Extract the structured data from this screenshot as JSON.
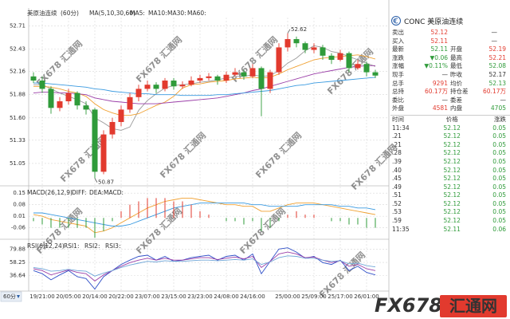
{
  "header": {
    "symbol": "美原油连续",
    "period": "(60分)",
    "period_tab": "60分"
  },
  "watermark": "FX678 汇通网",
  "logo": {
    "brand": "FX678",
    "name": "汇通网"
  },
  "chart_data": [
    {
      "type": "candlestick",
      "indicator": "MA(5,10,30,60)",
      "categories": [
        null,
        "19/21:00",
        null,
        null,
        "20/05:00",
        null,
        null,
        "20/14:00",
        null,
        null,
        "20/22:00",
        null,
        null,
        "23/07:00",
        null,
        null,
        "23/15:00",
        null,
        null,
        "23/23:00",
        null,
        null,
        "24/08:00",
        null,
        null,
        "24/16:00",
        null,
        null,
        null,
        "25/00:00",
        null,
        null,
        "25/09:00",
        null,
        null,
        "25/17:00",
        null,
        null,
        "26/01:00",
        null
      ],
      "open": [
        52.1,
        52.05,
        51.95,
        51.72,
        51.8,
        51.9,
        51.75,
        51.7,
        50.95,
        51.4,
        51.55,
        51.7,
        51.85,
        51.95,
        52.0,
        51.95,
        52.05,
        51.98,
        52.0,
        52.05,
        52.08,
        52.1,
        52.05,
        52.12,
        52.15,
        52.1,
        52.2,
        51.95,
        52.15,
        52.45,
        52.55,
        52.5,
        52.42,
        52.45,
        52.35,
        52.3,
        52.38,
        52.2,
        52.25,
        52.15
      ],
      "high": [
        52.15,
        52.1,
        51.98,
        51.85,
        51.95,
        51.92,
        51.8,
        51.72,
        51.45,
        51.6,
        51.75,
        51.9,
        52.0,
        52.05,
        52.03,
        52.08,
        52.08,
        52.04,
        52.1,
        52.12,
        52.14,
        52.12,
        52.16,
        52.2,
        52.18,
        52.25,
        52.22,
        52.18,
        52.5,
        52.62,
        52.58,
        52.52,
        52.5,
        52.48,
        52.38,
        52.42,
        52.4,
        52.3,
        52.28,
        52.18
      ],
      "low": [
        52.02,
        51.9,
        51.65,
        51.68,
        51.76,
        51.7,
        51.64,
        50.87,
        50.92,
        51.35,
        51.5,
        51.66,
        51.8,
        51.92,
        51.9,
        51.92,
        51.94,
        51.95,
        51.98,
        52.02,
        52.05,
        52.0,
        52.02,
        52.1,
        52.06,
        52.08,
        51.62,
        51.9,
        52.12,
        52.4,
        52.45,
        52.38,
        52.38,
        52.3,
        52.25,
        52.28,
        52.15,
        52.18,
        52.1,
        52.08
      ],
      "close": [
        52.05,
        51.95,
        51.72,
        51.8,
        51.9,
        51.75,
        51.7,
        50.95,
        51.4,
        51.55,
        51.7,
        51.85,
        51.95,
        52.0,
        51.95,
        52.05,
        51.98,
        52.0,
        52.05,
        52.08,
        52.1,
        52.05,
        52.12,
        52.15,
        52.1,
        52.2,
        51.95,
        52.15,
        52.45,
        52.55,
        52.5,
        52.42,
        52.45,
        52.35,
        52.3,
        52.38,
        52.2,
        52.25,
        52.15,
        52.11
      ],
      "up_color": "#e23a2e",
      "down_color": "#2f9b3a",
      "annotations": [
        52.62,
        50.87
      ],
      "series": [
        {
          "name": "MA5:",
          "color": "#9a9a9a",
          "values": [
            52.0,
            52.0,
            51.95,
            51.9,
            51.86,
            51.82,
            51.77,
            51.6,
            51.54,
            51.47,
            51.45,
            51.49,
            51.69,
            51.81,
            51.89,
            51.96,
            51.99,
            52.0,
            52.01,
            52.03,
            52.04,
            52.06,
            52.08,
            52.1,
            52.1,
            52.12,
            52.1,
            52.11,
            52.17,
            52.26,
            52.32,
            52.41,
            52.47,
            52.45,
            52.4,
            52.38,
            52.34,
            52.3,
            52.26,
            52.22
          ]
        },
        {
          "name": "MA10:",
          "color": "#f0a030",
          "values": [
            51.98,
            51.98,
            51.97,
            51.95,
            51.92,
            51.9,
            51.86,
            51.77,
            51.7,
            51.66,
            51.63,
            51.63,
            51.65,
            51.7,
            51.75,
            51.79,
            51.86,
            51.96,
            52.0,
            52.01,
            52.03,
            52.04,
            52.05,
            52.07,
            52.08,
            52.09,
            52.08,
            52.09,
            52.13,
            52.18,
            52.22,
            52.26,
            52.3,
            52.32,
            52.33,
            52.34,
            52.35,
            52.36,
            52.34,
            52.31
          ]
        },
        {
          "name": "MA30:",
          "color": "#9b3fa8",
          "values": [
            51.9,
            51.91,
            51.91,
            51.9,
            51.9,
            51.89,
            51.88,
            51.84,
            51.82,
            51.8,
            51.79,
            51.78,
            51.77,
            51.77,
            51.77,
            51.78,
            51.79,
            51.8,
            51.81,
            51.82,
            51.83,
            51.84,
            51.86,
            51.88,
            51.9,
            51.93,
            51.95,
            51.98,
            52.01,
            52.04,
            52.07,
            52.1,
            52.13,
            52.15,
            52.17,
            52.19,
            52.21,
            52.22,
            52.23,
            52.23
          ]
        },
        {
          "name": "MA60:",
          "color": "#3a9ae0",
          "values": [
            52.02,
            52.02,
            52.01,
            52.0,
            51.99,
            51.98,
            51.97,
            51.95,
            51.94,
            51.92,
            51.91,
            51.9,
            51.89,
            51.89,
            51.88,
            51.88,
            51.88,
            51.87,
            51.87,
            51.87,
            51.87,
            51.88,
            51.88,
            51.89,
            51.9,
            51.91,
            51.92,
            51.93,
            51.95,
            51.97,
            51.99,
            52.0,
            52.02,
            52.03,
            52.04,
            52.05,
            52.06,
            52.07,
            52.08,
            52.09
          ]
        }
      ],
      "ylim": [
        50.79,
        52.81
      ],
      "yticks": [
        52.71,
        52.43,
        52.16,
        51.88,
        {
          "value": 51.6,
          "label": "51.60"
        },
        51.33,
        51.05
      ],
      "grid": true
    },
    {
      "type": "macd",
      "indicator": "MACD(26,12,9)",
      "series": [
        {
          "name": "DIFF:",
          "color": "#f0a030",
          "values": [
            0.02,
            0.01,
            -0.01,
            -0.02,
            -0.03,
            -0.04,
            -0.05,
            -0.09,
            -0.08,
            -0.06,
            -0.03,
            0.0,
            0.03,
            0.06,
            0.08,
            0.1,
            0.11,
            0.12,
            0.12,
            0.11,
            0.1,
            0.09,
            0.08,
            0.08,
            0.07,
            0.07,
            0.04,
            0.04,
            0.06,
            0.08,
            0.09,
            0.09,
            0.09,
            0.08,
            0.07,
            0.06,
            0.05,
            0.04,
            0.03,
            0.02
          ]
        },
        {
          "name": "DEA:",
          "color": "#3a9ae0",
          "values": [
            0.03,
            0.03,
            0.02,
            0.01,
            0.0,
            -0.01,
            -0.02,
            -0.03,
            -0.04,
            -0.05,
            -0.05,
            -0.04,
            -0.02,
            0.0,
            0.02,
            0.04,
            0.06,
            0.07,
            0.08,
            0.09,
            0.09,
            0.09,
            0.09,
            0.09,
            0.09,
            0.08,
            0.08,
            0.07,
            0.07,
            0.07,
            0.07,
            0.08,
            0.08,
            0.08,
            0.08,
            0.07,
            0.07,
            0.06,
            0.06,
            0.05
          ]
        },
        {
          "name": "MACD:",
          "color": "#9b3fa8",
          "style": "bar",
          "up_color": "#e23a2e",
          "down_color": "#2f9b3a",
          "values": [
            -0.02,
            -0.04,
            -0.06,
            -0.06,
            -0.06,
            -0.06,
            -0.06,
            -0.12,
            -0.08,
            -0.02,
            0.04,
            0.08,
            0.1,
            0.12,
            0.12,
            0.12,
            0.1,
            0.1,
            0.08,
            0.04,
            0.02,
            0.0,
            -0.02,
            -0.02,
            -0.04,
            -0.02,
            -0.08,
            -0.06,
            -0.02,
            0.02,
            0.04,
            0.02,
            0.02,
            0.0,
            -0.02,
            -0.02,
            -0.04,
            -0.04,
            -0.06,
            -0.06
          ]
        }
      ],
      "ylim": [
        -0.12,
        0.18
      ],
      "yticks": [
        0.15,
        0.08,
        0.01,
        -0.06
      ],
      "grid": true
    },
    {
      "type": "line",
      "indicator": "RSI(6,12,24)",
      "series": [
        {
          "name": "RSI1:",
          "color": "#2f4fc8",
          "values": [
            45,
            40,
            30,
            38,
            45,
            35,
            32,
            15,
            35,
            45,
            55,
            62,
            68,
            70,
            62,
            68,
            60,
            62,
            66,
            68,
            70,
            62,
            68,
            70,
            62,
            72,
            40,
            60,
            80,
            82,
            75,
            65,
            68,
            58,
            55,
            62,
            45,
            52,
            42,
            38
          ]
        },
        {
          "name": "RSI2:",
          "color": "#9b3fa8",
          "values": [
            48,
            45,
            38,
            42,
            46,
            42,
            40,
            28,
            38,
            45,
            52,
            58,
            62,
            65,
            62,
            65,
            62,
            62,
            64,
            66,
            66,
            63,
            65,
            67,
            64,
            68,
            50,
            60,
            72,
            75,
            72,
            66,
            67,
            62,
            58,
            61,
            52,
            55,
            48,
            45
          ]
        },
        {
          "name": "RSI3:",
          "color": "#6fa6d8",
          "values": [
            50,
            48,
            44,
            45,
            47,
            45,
            44,
            36,
            41,
            45,
            50,
            54,
            57,
            60,
            59,
            61,
            60,
            60,
            61,
            62,
            62,
            61,
            62,
            63,
            62,
            64,
            55,
            59,
            66,
            69,
            68,
            65,
            65,
            62,
            60,
            61,
            56,
            57,
            53,
            51
          ]
        }
      ],
      "ylim": [
        13,
        92
      ],
      "yticks": [
        79.88,
        58.25,
        36.64
      ],
      "grid": true
    }
  ],
  "quote": {
    "title": "CONC 美原油连续",
    "rows": [
      [
        "卖出",
        "52.12",
        "—"
      ],
      [
        "买入",
        "52.11",
        "—"
      ],
      [
        "最新",
        "52.11",
        "开盘",
        "52.19"
      ],
      [
        "涨跌",
        "▼0.06",
        "最高",
        "52.21"
      ],
      [
        "涨幅",
        "▼0.11%",
        "最低",
        "52.08"
      ],
      [
        "现手",
        "—",
        "昨收",
        "52.17"
      ],
      [
        "总手",
        "9291",
        "均价",
        "52.13"
      ],
      [
        "总持",
        "60.17万",
        "持仓差",
        "60.17万"
      ],
      [
        "委比",
        "—",
        "委差",
        "—"
      ],
      [
        "外盘",
        "4581",
        "内盘",
        "4705"
      ]
    ],
    "ticks_header": [
      "时间",
      "价格",
      "涨跌"
    ],
    "ticks": [
      [
        "11:34",
        "52.12",
        "0.05"
      ],
      [
        ".21",
        "52.12",
        "0.05"
      ],
      [
        ".21",
        "52.12",
        "0.05"
      ],
      [
        ".28",
        "52.12",
        "0.05"
      ],
      [
        ".39",
        "52.12",
        "0.05"
      ],
      [
        ".40",
        "52.12",
        "0.05"
      ],
      [
        ".45",
        "52.12",
        "0.05"
      ],
      [
        ".49",
        "52.12",
        "0.05"
      ],
      [
        ".51",
        "52.12",
        "0.05"
      ],
      [
        ".52",
        "52.12",
        "0.05"
      ],
      [
        ".53",
        "52.12",
        "0.05"
      ],
      [
        ".59",
        "52.12",
        "0.05"
      ],
      [
        "11:35",
        "52.11",
        "0.06"
      ]
    ]
  }
}
